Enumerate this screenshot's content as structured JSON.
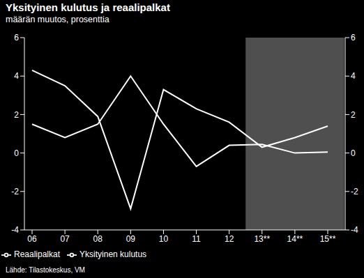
{
  "chart_data": {
    "type": "line",
    "title": "Yksityinen kulutus ja reaalipalkat",
    "subtitle": "määrän muutos, prosenttia",
    "source": "Lähde: Tilastokeskus, VM",
    "categories": [
      "06",
      "07",
      "08",
      "09",
      "10",
      "11",
      "12",
      "13**",
      "14**",
      "15**"
    ],
    "series": [
      {
        "name": "Yksityinen kulutus",
        "color": "#ffffff",
        "values": [
          4.3,
          3.5,
          1.9,
          -2.9,
          3.3,
          2.3,
          1.6,
          0.3,
          0.8,
          1.4
        ]
      },
      {
        "name": "Reaalipalkat",
        "color": "#ffffff",
        "values": [
          1.5,
          0.8,
          1.5,
          4.0,
          1.5,
          -0.7,
          0.4,
          0.45,
          0.0,
          0.05
        ]
      }
    ],
    "ylim": [
      -4,
      6
    ],
    "yticks": [
      -4,
      -2,
      0,
      2,
      4,
      6
    ],
    "grid": false,
    "legend": "bottom"
  }
}
